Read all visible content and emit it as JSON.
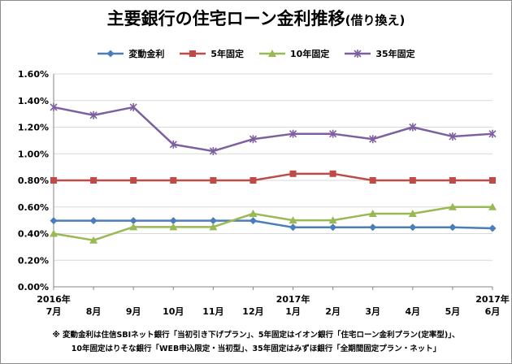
{
  "title_main": "主要銀行の住宅ローン金利推移",
  "title_sub": "(借り換え)",
  "chart_data": {
    "type": "line",
    "title": "主要銀行の住宅ローン金利推移(借り換え)",
    "categories": [
      {
        "year": "2016年",
        "month": "7月"
      },
      {
        "year": "",
        "month": "8月"
      },
      {
        "year": "",
        "month": "9月"
      },
      {
        "year": "",
        "month": "10月"
      },
      {
        "year": "",
        "month": "11月"
      },
      {
        "year": "",
        "month": "12月"
      },
      {
        "year": "2017年",
        "month": "1月"
      },
      {
        "year": "",
        "month": "2月"
      },
      {
        "year": "",
        "month": "3月"
      },
      {
        "year": "",
        "month": "4月"
      },
      {
        "year": "",
        "month": "5月"
      },
      {
        "year": "2017年",
        "month": "6月"
      }
    ],
    "ylim": [
      0,
      1.6
    ],
    "yticks": [
      "0.00%",
      "0.20%",
      "0.40%",
      "0.60%",
      "0.80%",
      "1.00%",
      "1.20%",
      "1.40%",
      "1.60%"
    ],
    "grid": true,
    "legend_position": "top",
    "series": [
      {
        "name": "変動金利",
        "color": "#4a7ebb",
        "marker": "diamond",
        "values": [
          0.497,
          0.497,
          0.497,
          0.497,
          0.497,
          0.497,
          0.447,
          0.447,
          0.447,
          0.447,
          0.447,
          0.44
        ]
      },
      {
        "name": "5年固定",
        "color": "#be4b48",
        "marker": "square",
        "values": [
          0.8,
          0.8,
          0.8,
          0.8,
          0.8,
          0.8,
          0.85,
          0.85,
          0.8,
          0.8,
          0.8,
          0.8
        ]
      },
      {
        "name": "10年固定",
        "color": "#98b954",
        "marker": "triangle",
        "values": [
          0.4,
          0.35,
          0.45,
          0.45,
          0.45,
          0.55,
          0.5,
          0.5,
          0.55,
          0.55,
          0.6,
          0.6
        ]
      },
      {
        "name": "35年固定",
        "color": "#7d60a0",
        "marker": "star",
        "values": [
          1.35,
          1.29,
          1.35,
          1.07,
          1.02,
          1.11,
          1.15,
          1.15,
          1.11,
          1.2,
          1.13,
          1.15
        ]
      }
    ]
  },
  "footnote": {
    "line1": "※ 変動金利は住信SBIネット銀行「当初引き下げプラン」、5年固定はイオン銀行「住宅ローン金利プラン(定率型)」、",
    "line2": "10年固定はりそな銀行「WEB申込限定・当初型」、35年固定はみずほ銀行「全期間固定プラン・ネット」"
  }
}
